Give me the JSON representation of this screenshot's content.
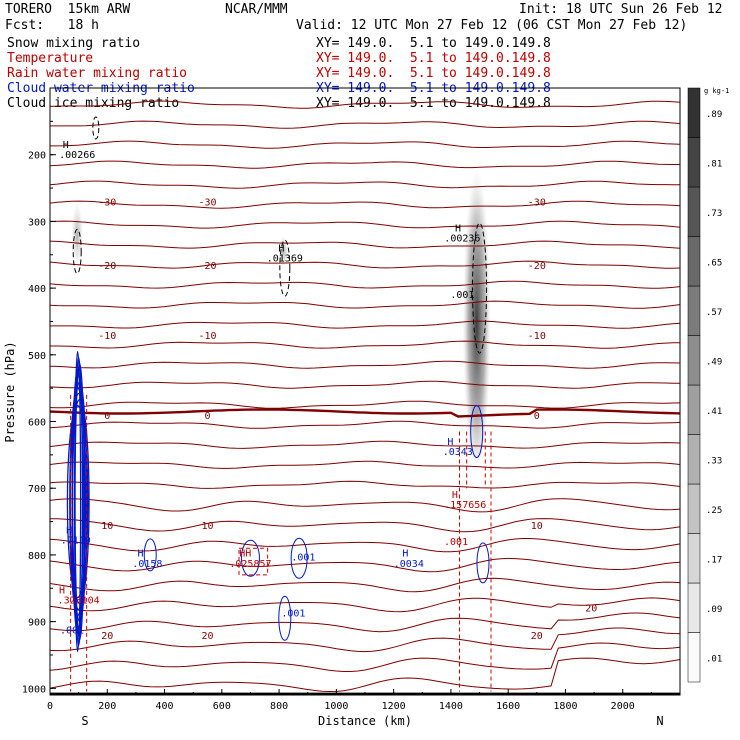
{
  "header": {
    "model": "TORERO  15km ARW",
    "center": "NCAR/MMM",
    "init": "Init: 18 UTC Sun 26 Feb 12",
    "fcst": "Fcst:   18 h",
    "valid": "Valid: 12 UTC Mon 27 Feb 12 (06 CST Mon 27 Feb 12)"
  },
  "fields": [
    {
      "name": "Snow mixing ratio",
      "xy": "XY= 149.0.  5.1 to 149.0.149.8",
      "color": "#000000"
    },
    {
      "name": "Temperature",
      "xy": "XY= 149.0.  5.1 to 149.0.149.8",
      "color": "#c00000"
    },
    {
      "name": "Rain water mixing ratio",
      "xy": "XY= 149.0.  5.1 to 149.0.149.8",
      "color": "#c00000"
    },
    {
      "name": "Cloud water mixing ratio",
      "xy": "XY= 149.0.  5.1 to 149.0.149.8",
      "color": "#0018c8"
    },
    {
      "name": "Cloud ice mixing ratio",
      "xy": "XY= 149.0.  5.1 to 149.0.149.8",
      "color": "#000000"
    }
  ],
  "chart_data": {
    "type": "cross-section",
    "xlabel": "Distance (km)",
    "ylabel": "Pressure (hPa)",
    "xlim": [
      0,
      2200
    ],
    "ylim": [
      1010,
      100
    ],
    "x_ticks": [
      0,
      200,
      400,
      600,
      800,
      1000,
      1200,
      1400,
      1600,
      1800,
      2000
    ],
    "y_ticks": [
      200,
      300,
      400,
      500,
      600,
      700,
      800,
      900,
      1000
    ],
    "x_end_labels": {
      "left": "S",
      "right": "N"
    },
    "colorbar": {
      "unit": "g kg-1",
      "levels": [
        ".01",
        ".09",
        ".17",
        ".25",
        ".33",
        ".41",
        ".49",
        ".57",
        ".65",
        ".73",
        ".81",
        ".89"
      ]
    },
    "temperature_contours": [
      {
        "label": "-30",
        "p": 270
      },
      {
        "label": "-20",
        "p": 365
      },
      {
        "label": "-10",
        "p": 470
      },
      {
        "label": "0",
        "p": 590
      },
      {
        "label": "10",
        "p": 755
      },
      {
        "label": "20",
        "p": 920
      }
    ],
    "annotations": [
      {
        "text": "H",
        "x": 55,
        "p": 190,
        "color": "#000000"
      },
      {
        "text": ".00266",
        "x": 95,
        "p": 205,
        "color": "#000000"
      },
      {
        "text": "H",
        "x": 808,
        "p": 345,
        "color": "#000000"
      },
      {
        "text": ".01369",
        "x": 820,
        "p": 360,
        "color": "#000000"
      },
      {
        "text": "H",
        "x": 1425,
        "p": 315,
        "color": "#000000"
      },
      {
        "text": ".00236",
        "x": 1440,
        "p": 330,
        "color": "#000000"
      },
      {
        "text": ".001",
        "x": 1440,
        "p": 415,
        "color": "#000000"
      },
      {
        "text": "H",
        "x": 1398,
        "p": 635,
        "color": "#0018c8"
      },
      {
        "text": ".0343",
        "x": 1424,
        "p": 650,
        "color": "#0018c8"
      },
      {
        "text": "H",
        "x": 1414,
        "p": 715,
        "color": "#c00000"
      },
      {
        "text": ".157656",
        "x": 1450,
        "p": 730,
        "color": "#c00000"
      },
      {
        "text": ".001",
        "x": 1418,
        "p": 785,
        "color": "#c00000"
      },
      {
        "text": "H",
        "x": 67,
        "p": 768,
        "color": "#0018c8"
      },
      {
        "text": ".7119",
        "x": 90,
        "p": 783,
        "color": "#0018c8"
      },
      {
        "text": "H",
        "x": 316,
        "p": 802,
        "color": "#0018c8"
      },
      {
        "text": ".0158",
        "x": 340,
        "p": 818,
        "color": "#0018c8"
      },
      {
        "text": "HH",
        "x": 682,
        "p": 802,
        "color": "#c00000"
      },
      {
        "text": ".025857",
        "x": 700,
        "p": 818,
        "color": "#c00000"
      },
      {
        "text": ".001",
        "x": 885,
        "p": 808,
        "color": "#0018c8"
      },
      {
        "text": "H",
        "x": 1241,
        "p": 802,
        "color": "#0018c8"
      },
      {
        "text": ".0034",
        "x": 1253,
        "p": 818,
        "color": "#0018c8"
      },
      {
        "text": ".001",
        "x": 850,
        "p": 892,
        "color": "#0018c8"
      },
      {
        "text": "H",
        "x": 42,
        "p": 858,
        "color": "#c00000"
      },
      {
        "text": ".323104",
        "x": 100,
        "p": 873,
        "color": "#c00000"
      },
      {
        "text": ".001",
        "x": 77,
        "p": 918,
        "color": "#0018c8"
      },
      {
        "text": "20",
        "x": 1890,
        "p": 885,
        "color": "#800000"
      }
    ]
  }
}
